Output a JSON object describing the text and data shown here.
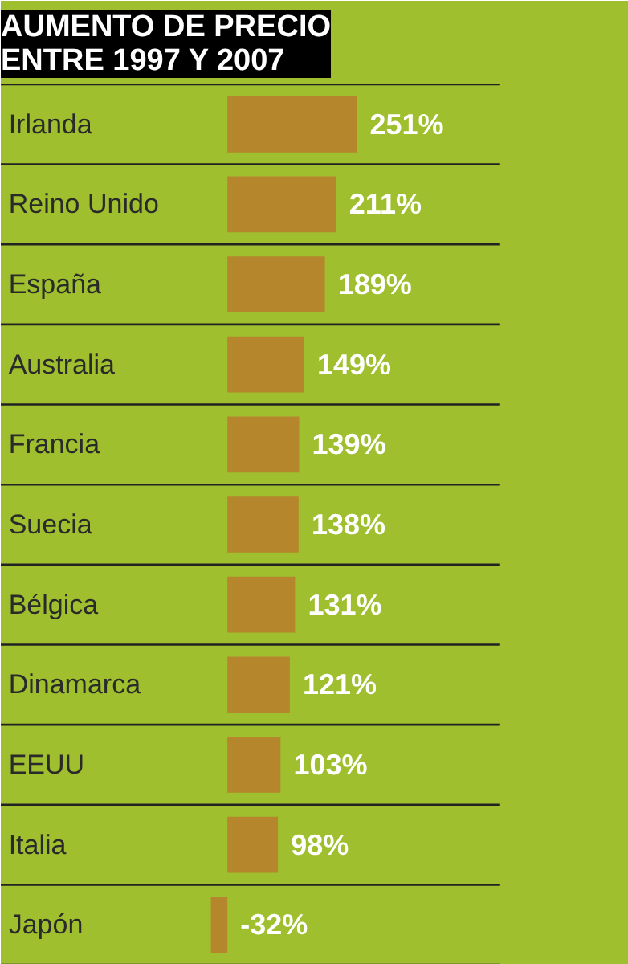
{
  "chart_data": {
    "type": "bar",
    "orientation": "horizontal",
    "title": "AUMENTO DE PRECIO\nENTRE 1997 Y 2007",
    "categories": [
      "Irlanda",
      "Reino Unido",
      "España",
      "Australia",
      "Francia",
      "Suecia",
      "Bélgica",
      "Dinamarca",
      "EEUU",
      "Italia",
      "Japón"
    ],
    "values": [
      251,
      211,
      189,
      149,
      139,
      138,
      131,
      121,
      103,
      98,
      -32
    ],
    "value_labels": [
      "251%",
      "211%",
      "189%",
      "149%",
      "139%",
      "138%",
      "131%",
      "121%",
      "103%",
      "98%",
      "-32%"
    ],
    "color": "#b5862c",
    "grid": "y"
  }
}
